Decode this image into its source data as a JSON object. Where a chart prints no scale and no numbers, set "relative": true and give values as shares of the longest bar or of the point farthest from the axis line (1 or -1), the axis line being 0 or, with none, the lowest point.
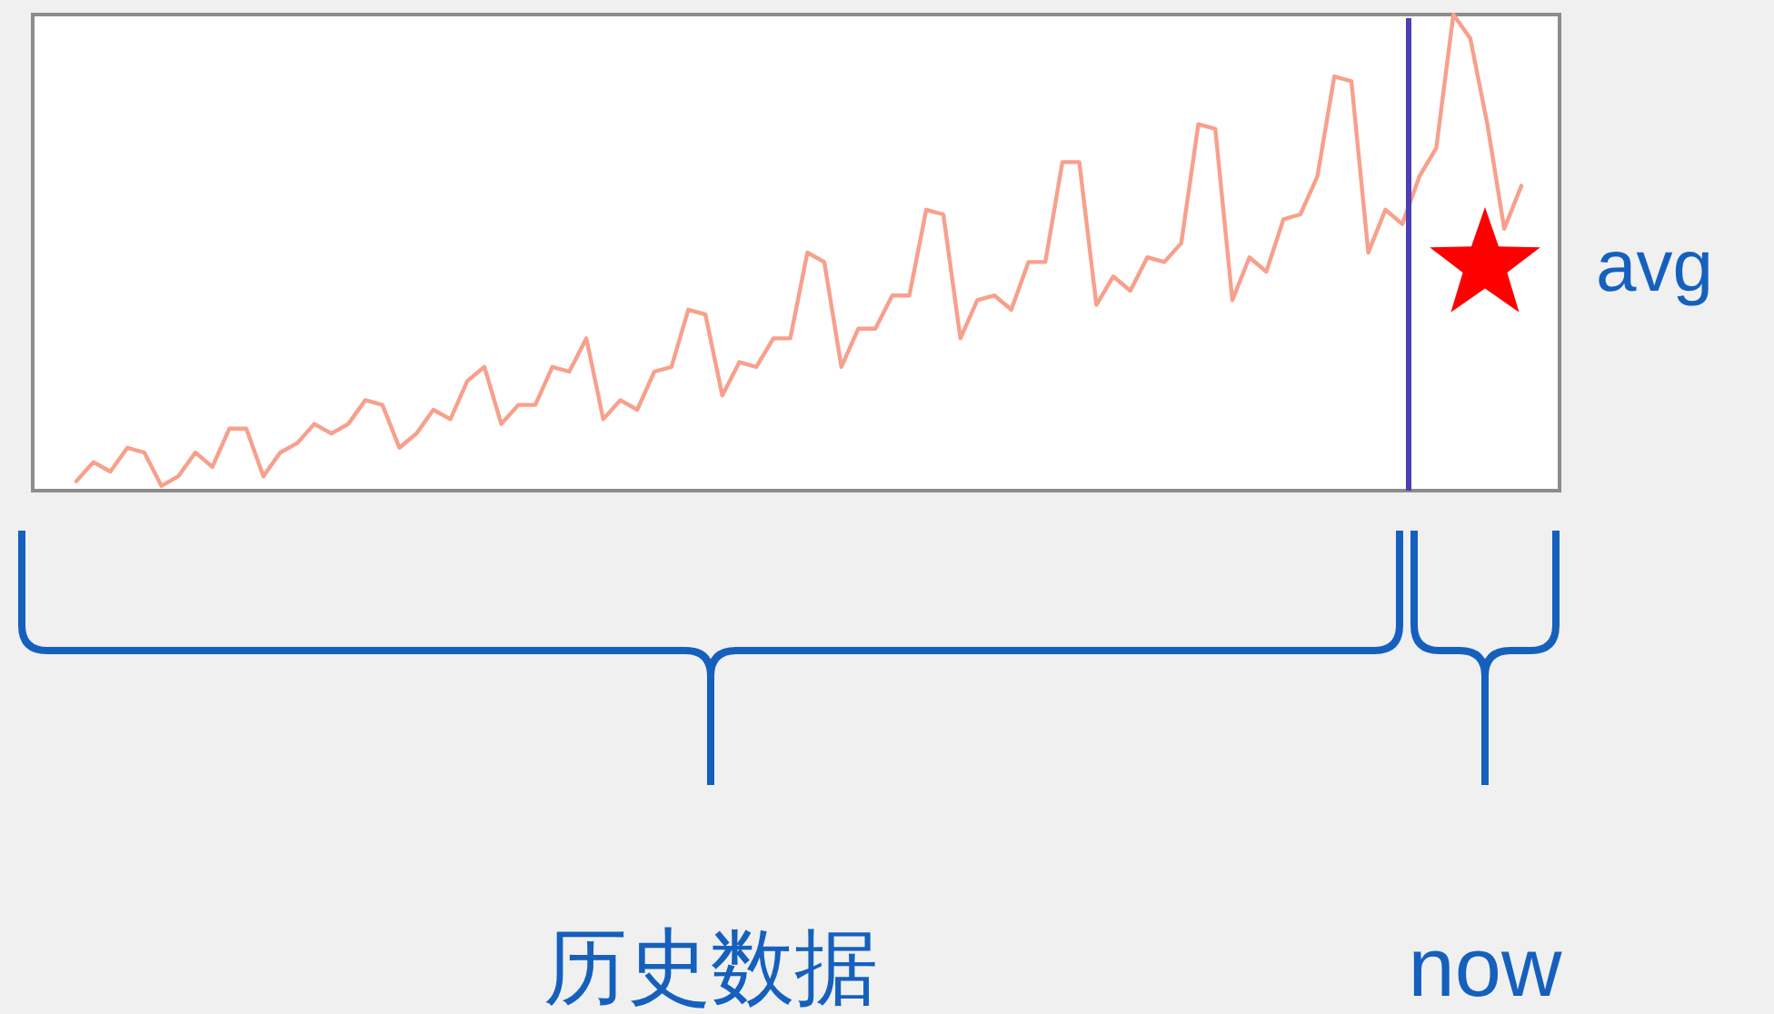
{
  "chart_data": {
    "type": "line",
    "relative": true,
    "categories": [
      null,
      null,
      null,
      null,
      null,
      null,
      null,
      null,
      null,
      null,
      null,
      null,
      null,
      null,
      null,
      null,
      null,
      null,
      null,
      null,
      null,
      null,
      null,
      null,
      null,
      null,
      null,
      null,
      null,
      null,
      null,
      null,
      null,
      null,
      null,
      null,
      null,
      null,
      null,
      null,
      null,
      null,
      null,
      null,
      null,
      null,
      null,
      null,
      null,
      null,
      null,
      null,
      null,
      null,
      null,
      null,
      null,
      null,
      null,
      null,
      null,
      null,
      null,
      null,
      null,
      null,
      null,
      null,
      null,
      null,
      null,
      null,
      null,
      null,
      null,
      null,
      null,
      null,
      null,
      null,
      null,
      null,
      null,
      null,
      null,
      null
    ],
    "series": [
      {
        "color": "#f7a08c",
        "values": [
          0.02,
          0.06,
          0.04,
          0.09,
          0.08,
          0.01,
          0.03,
          0.08,
          0.05,
          0.13,
          0.13,
          0.03,
          0.08,
          0.1,
          0.14,
          0.12,
          0.14,
          0.19,
          0.18,
          0.09,
          0.12,
          0.17,
          0.15,
          0.23,
          0.26,
          0.14,
          0.18,
          0.18,
          0.26,
          0.25,
          0.32,
          0.15,
          0.19,
          0.17,
          0.25,
          0.26,
          0.38,
          0.37,
          0.2,
          0.27,
          0.26,
          0.32,
          0.32,
          0.5,
          0.48,
          0.26,
          0.34,
          0.34,
          0.41,
          0.41,
          0.59,
          0.58,
          0.32,
          0.4,
          0.41,
          0.38,
          0.48,
          0.48,
          0.69,
          0.69,
          0.39,
          0.45,
          0.42,
          0.49,
          0.48,
          0.52,
          0.77,
          0.76,
          0.4,
          0.49,
          0.46,
          0.57,
          0.58,
          0.66,
          0.87,
          0.86,
          0.5,
          0.59,
          0.56,
          0.66,
          0.72,
          1.0,
          0.95,
          0.77,
          0.55,
          0.64
        ]
      }
    ],
    "annotations": [
      "avg",
      "历史数据",
      "now"
    ]
  }
}
